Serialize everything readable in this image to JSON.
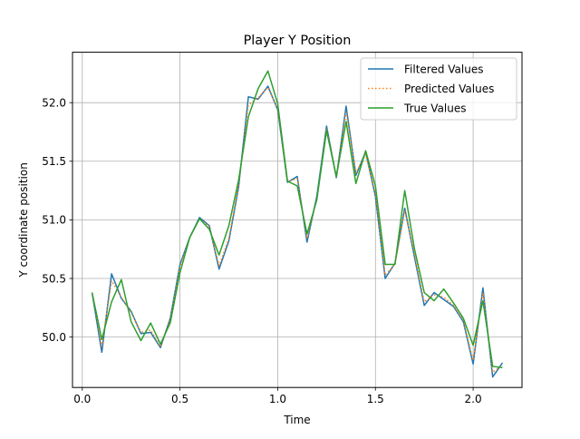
{
  "chart_data": {
    "type": "line",
    "title": "Player Y Position",
    "xlabel": "Time",
    "ylabel": "Y coordinate position",
    "xlim": [
      -0.05,
      2.25
    ],
    "ylim": [
      49.57,
      62.43
    ],
    "ylim_display": [
      49.57,
      52.43
    ],
    "xticks": [
      0.0,
      0.5,
      1.0,
      1.5,
      2.0
    ],
    "xtick_labels": [
      "0.0",
      "0.5",
      "1.0",
      "1.5",
      "2.0"
    ],
    "yticks": [
      50.0,
      50.5,
      51.0,
      51.5,
      52.0
    ],
    "ytick_labels": [
      "50.0",
      "50.5",
      "51.0",
      "51.5",
      "52.0"
    ],
    "grid": true,
    "legend_position": "top-right",
    "x": [
      0.05,
      0.1,
      0.15,
      0.2,
      0.25,
      0.3,
      0.35,
      0.4,
      0.45,
      0.5,
      0.55,
      0.6,
      0.65,
      0.7,
      0.75,
      0.8,
      0.85,
      0.9,
      0.95,
      1.0,
      1.05,
      1.1,
      1.15,
      1.2,
      1.25,
      1.3,
      1.35,
      1.4,
      1.45,
      1.5,
      1.55,
      1.6,
      1.65,
      1.7,
      1.75,
      1.8,
      1.85,
      1.9,
      1.95,
      2.0,
      2.05,
      2.1,
      2.15
    ],
    "series": [
      {
        "name": "Filtered Values",
        "color": "#1f77b4",
        "style": "solid",
        "values": [
          50.38,
          49.87,
          50.54,
          50.33,
          50.22,
          50.03,
          50.04,
          49.91,
          50.16,
          50.62,
          50.85,
          51.02,
          50.95,
          50.58,
          50.82,
          51.28,
          52.05,
          52.03,
          52.14,
          51.94,
          51.32,
          51.37,
          50.81,
          51.2,
          51.8,
          51.36,
          51.97,
          51.38,
          51.58,
          51.2,
          50.5,
          50.63,
          51.1,
          50.68,
          50.27,
          50.38,
          50.32,
          50.26,
          50.13,
          49.77,
          50.42,
          49.66,
          49.78
        ]
      },
      {
        "name": "Predicted Values",
        "color": "#ff7f0e",
        "style": "dotted",
        "values": [
          50.38,
          49.92,
          50.48,
          50.34,
          50.21,
          50.04,
          50.06,
          49.92,
          50.15,
          50.6,
          50.85,
          51.01,
          50.94,
          50.61,
          50.84,
          51.3,
          51.98,
          52.04,
          52.13,
          51.95,
          51.33,
          51.35,
          50.84,
          51.18,
          51.78,
          51.37,
          51.92,
          51.4,
          51.56,
          51.22,
          50.53,
          50.62,
          51.08,
          50.7,
          50.3,
          50.36,
          50.34,
          50.27,
          50.14,
          49.8,
          50.38,
          49.7,
          49.76
        ]
      },
      {
        "name": "True Values",
        "color": "#2ca02c",
        "style": "solid",
        "values": [
          50.38,
          49.98,
          50.3,
          50.49,
          50.13,
          49.97,
          50.12,
          49.94,
          50.12,
          50.55,
          50.85,
          51.01,
          50.92,
          50.7,
          50.95,
          51.34,
          51.88,
          52.12,
          52.27,
          51.99,
          51.33,
          51.29,
          50.88,
          51.17,
          51.76,
          51.37,
          51.84,
          51.31,
          51.59,
          51.29,
          50.62,
          50.62,
          51.25,
          50.75,
          50.38,
          50.31,
          50.41,
          50.29,
          50.16,
          49.93,
          50.31,
          49.75,
          49.74
        ]
      }
    ]
  }
}
